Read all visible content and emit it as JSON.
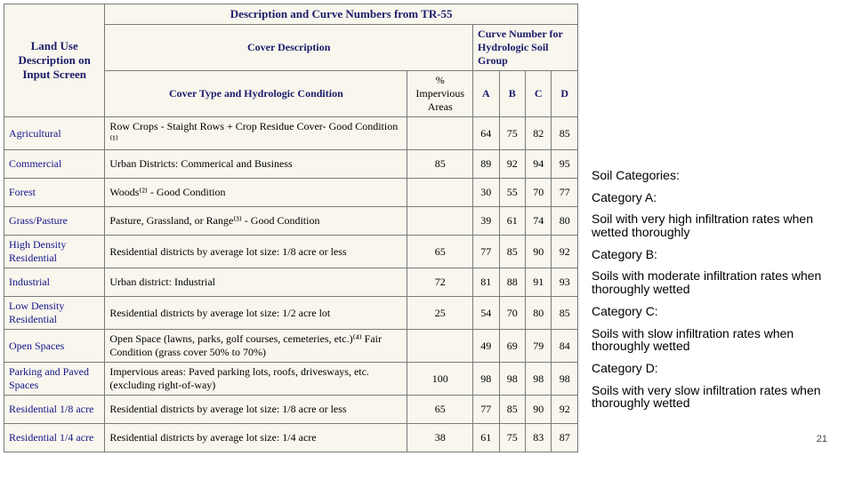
{
  "table": {
    "headers": {
      "land_use": "Land Use Description on Input Screen",
      "tr55": "Description and Curve Numbers from TR-55",
      "cover_description": "Cover Description",
      "curve_number_group": "Curve Number for Hydrologic Soil Group",
      "cover_type": "Cover Type and Hydrologic Condition",
      "impervious": "% Impervious Areas",
      "a": "A",
      "b": "B",
      "c": "C",
      "d": "D"
    },
    "rows": [
      {
        "land_use": "Agricultural",
        "cover": "Row Crops - Staight Rows + Crop Residue Cover- Good Condition ⁽¹⁾",
        "imp": "",
        "a": "64",
        "b": "75",
        "c": "82",
        "d": "85"
      },
      {
        "land_use": "Commercial",
        "cover": "Urban Districts: Commerical and Business",
        "imp": "85",
        "a": "89",
        "b": "92",
        "c": "94",
        "d": "95"
      },
      {
        "land_use": "Forest",
        "cover": "Woods⁽²⁾ - Good Condition",
        "imp": "",
        "a": "30",
        "b": "55",
        "c": "70",
        "d": "77"
      },
      {
        "land_use": "Grass/Pasture",
        "cover": "Pasture, Grassland, or Range⁽³⁾ - Good Condition",
        "imp": "",
        "a": "39",
        "b": "61",
        "c": "74",
        "d": "80"
      },
      {
        "land_use": "High Density Residential",
        "cover": "Residential districts by average lot size: 1/8 acre or less",
        "imp": "65",
        "a": "77",
        "b": "85",
        "c": "90",
        "d": "92"
      },
      {
        "land_use": "Industrial",
        "cover": "Urban district: Industrial",
        "imp": "72",
        "a": "81",
        "b": "88",
        "c": "91",
        "d": "93"
      },
      {
        "land_use": "Low Density Residential",
        "cover": "Residential districts by average lot size: 1/2 acre lot",
        "imp": "25",
        "a": "54",
        "b": "70",
        "c": "80",
        "d": "85"
      },
      {
        "land_use": "Open Spaces",
        "cover": "Open Space (lawns, parks, golf courses, cemeteries, etc.)⁽⁴⁾ Fair Condition (grass cover 50% to 70%)",
        "imp": "",
        "a": "49",
        "b": "69",
        "c": "79",
        "d": "84"
      },
      {
        "land_use": "Parking and Paved Spaces",
        "cover": "Impervious areas: Paved parking lots, roofs, drivesways, etc. (excluding right-of-way)",
        "imp": "100",
        "a": "98",
        "b": "98",
        "c": "98",
        "d": "98"
      },
      {
        "land_use": "Residential 1/8 acre",
        "cover": "Residential districts by average lot size: 1/8 acre or less",
        "imp": "65",
        "a": "77",
        "b": "85",
        "c": "90",
        "d": "92"
      },
      {
        "land_use": "Residential 1/4 acre",
        "cover": "Residential districts by average lot size: 1/4 acre",
        "imp": "38",
        "a": "61",
        "b": "75",
        "c": "83",
        "d": "87"
      }
    ]
  },
  "sidebar": {
    "title": "Soil Categories:",
    "items": [
      {
        "heading": "Category A:",
        "text": "Soil with very high infiltration rates when wetted thoroughly"
      },
      {
        "heading": "Category B:",
        "text": "Soils with moderate infiltration rates when thoroughly wetted"
      },
      {
        "heading": "Category C:",
        "text": "Soils with slow infiltration rates when thoroughly wetted"
      },
      {
        "heading": "Category D:",
        "text": "Soils with very slow infiltration rates when thoroughly wetted"
      }
    ]
  },
  "page_number": "21"
}
